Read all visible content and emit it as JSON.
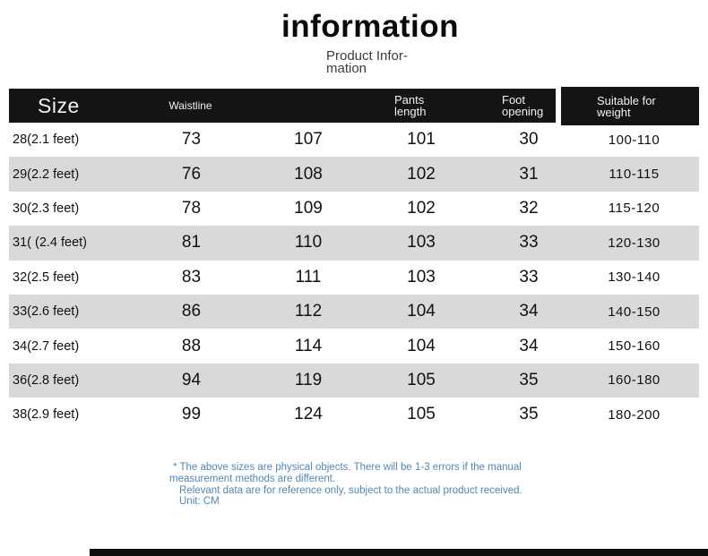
{
  "header": {
    "title": "information",
    "subtitle_line1": "Product Infor-",
    "subtitle_line2": "mation"
  },
  "table": {
    "column_labels": {
      "size": "Size",
      "waistline": "Waistline",
      "hip": "",
      "pants_line1": "Pants",
      "pants_line2": "length",
      "foot_line1": "Foot",
      "foot_line2": "opening",
      "weight_line1": "Suitable for",
      "weight_line2": "weight"
    },
    "rows": [
      {
        "size": "28(2.1 feet)",
        "waistline": "73",
        "hip": "107",
        "pants_length": "101",
        "foot_opening": "30",
        "weight": "100-110"
      },
      {
        "size": "29(2.2 feet)",
        "waistline": "76",
        "hip": "108",
        "pants_length": "102",
        "foot_opening": "31",
        "weight": "110-115"
      },
      {
        "size": "30(2.3 feet)",
        "waistline": "78",
        "hip": "109",
        "pants_length": "102",
        "foot_opening": "32",
        "weight": "115-120"
      },
      {
        "size": "31( (2.4 feet)",
        "waistline": "81",
        "hip": "110",
        "pants_length": "103",
        "foot_opening": "33",
        "weight": "120-130"
      },
      {
        "size": "32(2.5 feet)",
        "waistline": "83",
        "hip": "111",
        "pants_length": "103",
        "foot_opening": "33",
        "weight": "130-140"
      },
      {
        "size": "33(2.6 feet)",
        "waistline": "86",
        "hip": "112",
        "pants_length": "104",
        "foot_opening": "34",
        "weight": "140-150"
      },
      {
        "size": "34(2.7 feet)",
        "waistline": "88",
        "hip": "114",
        "pants_length": "104",
        "foot_opening": "34",
        "weight": "150-160"
      },
      {
        "size": "36(2.8 feet)",
        "waistline": "94",
        "hip": "119",
        "pants_length": "105",
        "foot_opening": "35",
        "weight": "160-180"
      },
      {
        "size": "38(2.9 feet)",
        "waistline": "99",
        "hip": "124",
        "pants_length": "105",
        "foot_opening": "35",
        "weight": "180-200"
      }
    ]
  },
  "notes": {
    "line1": "* The above sizes are physical objects. There will be 1-3 errors if the manual",
    "line2": "measurement methods are different.",
    "line3": "Relevant data are for reference only, subject to the actual product received.",
    "line4": "Unit: CM"
  },
  "colors": {
    "header_bg": "#141414",
    "row_alt_bg": "#d9d9d9",
    "note_text": "#4e87ba"
  }
}
